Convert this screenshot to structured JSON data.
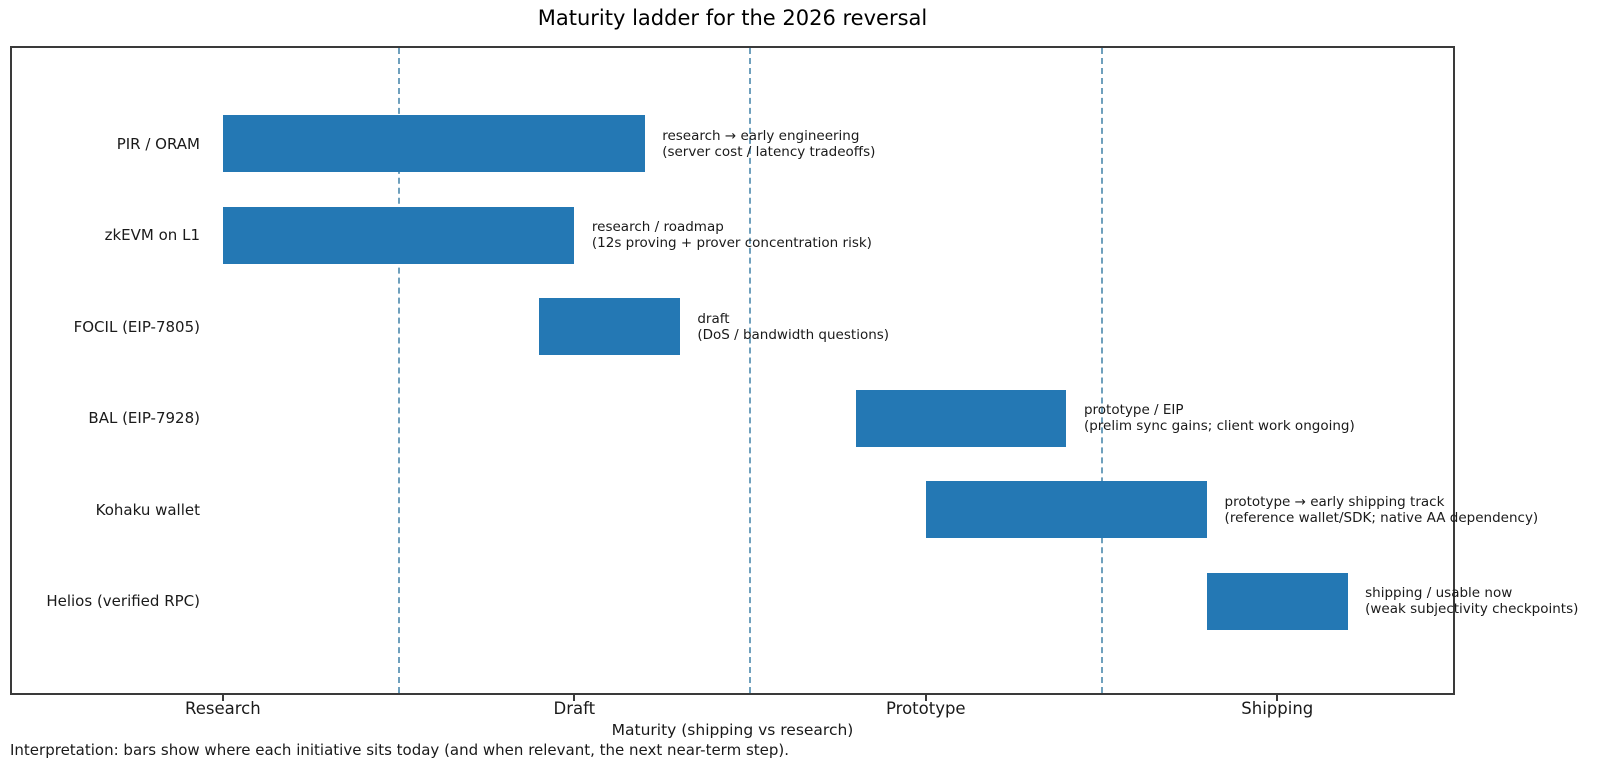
{
  "title": "Maturity ladder for the 2026 reversal",
  "footnote": "Interpretation: bars show where each initiative sits today (and when relevant, the next near-term step).",
  "colors": {
    "bar": "#2478b4",
    "separator": "#6fa0bd",
    "axis_border": "#3a3a3a",
    "text": "#1a1a1a"
  },
  "chart_data": {
    "type": "bar",
    "orientation": "horizontal",
    "title": "Maturity ladder for the 2026 reversal",
    "xlabel": "Maturity (shipping vs research)",
    "ylabel": "",
    "xlim": [
      -0.6,
      3.5
    ],
    "grid": false,
    "legend": "none",
    "x_categories": [
      "Research",
      "Draft",
      "Prototype",
      "Shipping"
    ],
    "x_category_positions": [
      0,
      1,
      2,
      3
    ],
    "separator_lines_x": [
      0.5,
      1.5,
      2.5
    ],
    "rows": [
      {
        "label": "PIR / ORAM",
        "start": 0.0,
        "end": 1.2,
        "note_line1": "research → early engineering",
        "note_line2": "(server cost / latency tradeoffs)"
      },
      {
        "label": "zkEVM on L1",
        "start": 0.0,
        "end": 1.0,
        "note_line1": "research / roadmap",
        "note_line2": "(12s proving + prover concentration risk)"
      },
      {
        "label": "FOCIL (EIP-7805)",
        "start": 0.9,
        "end": 1.3,
        "note_line1": "draft",
        "note_line2": "(DoS / bandwidth questions)"
      },
      {
        "label": "BAL (EIP-7928)",
        "start": 1.8,
        "end": 2.4,
        "note_line1": "prototype / EIP",
        "note_line2": "(prelim sync gains; client work ongoing)"
      },
      {
        "label": "Kohaku wallet",
        "start": 2.0,
        "end": 2.8,
        "note_line1": "prototype → early shipping track",
        "note_line2": "(reference wallet/SDK; native AA dependency)"
      },
      {
        "label": "Helios (verified RPC)",
        "start": 2.8,
        "end": 3.2,
        "note_line1": "shipping / usable now",
        "note_line2": "(weak subjectivity checkpoints)"
      }
    ]
  }
}
